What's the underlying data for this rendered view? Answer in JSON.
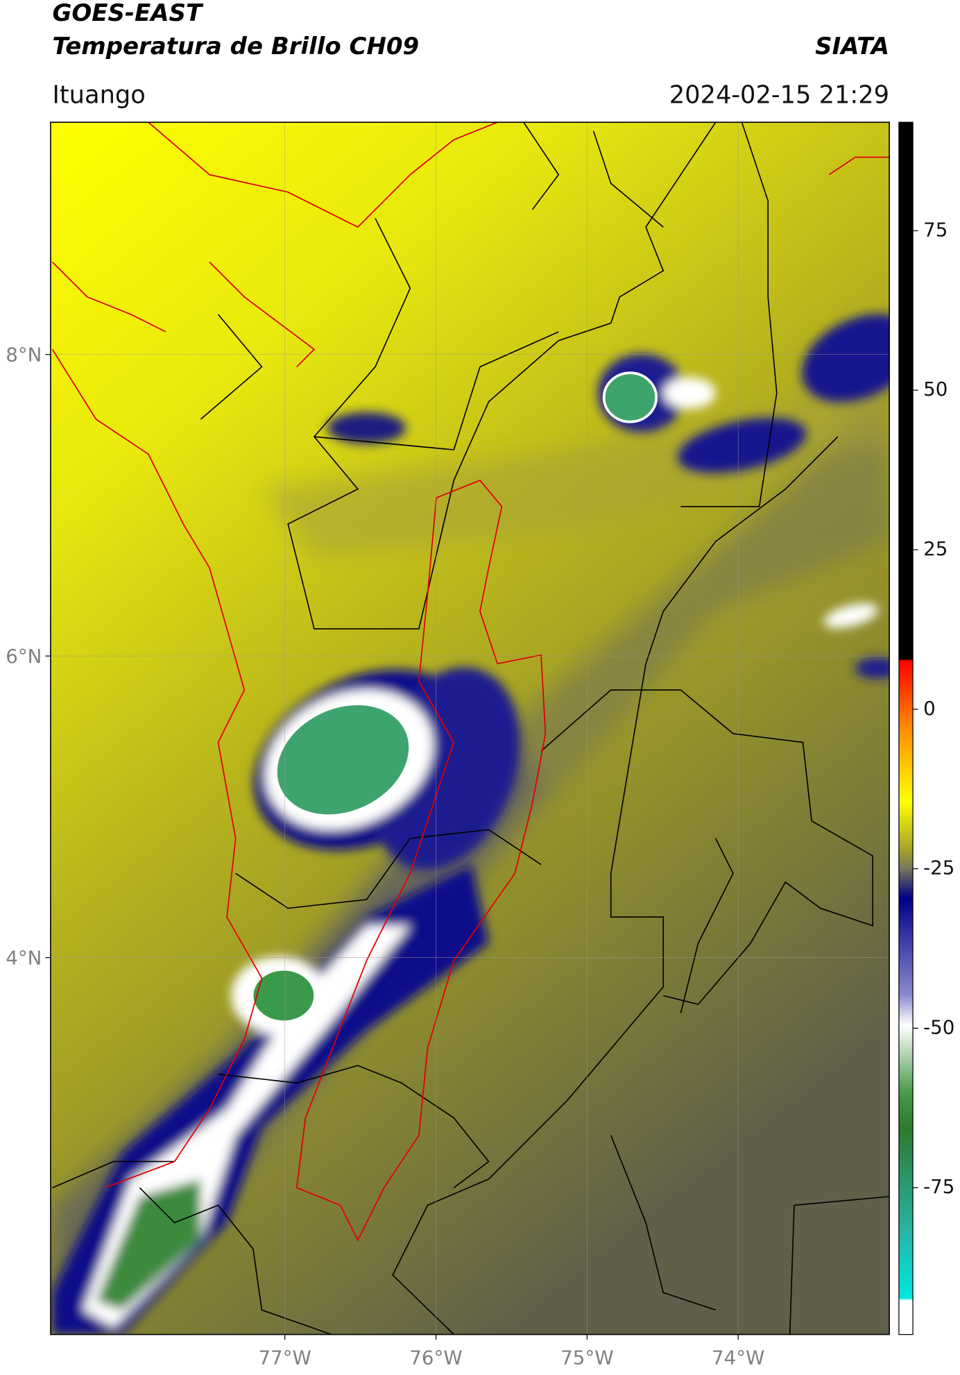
{
  "header": {
    "title": "GOES-EAST",
    "subtitle": "Temperatura de Brillo CH09",
    "source": "SIATA",
    "location": "Ituango",
    "datetime": "2024-02-15 21:29"
  },
  "map": {
    "lon_lim": [
      -78.55,
      -73.0
    ],
    "lat_lim": [
      1.5,
      9.54
    ],
    "lat_ticks": [
      {
        "value": 8,
        "label": "8°N"
      },
      {
        "value": 6,
        "label": "6°N"
      },
      {
        "value": 4,
        "label": "4°N"
      }
    ],
    "lon_ticks": [
      {
        "value": -77,
        "label": "77°W"
      },
      {
        "value": -76,
        "label": "76°W"
      },
      {
        "value": -75,
        "label": "75°W"
      },
      {
        "value": -74,
        "label": "74°W"
      }
    ]
  },
  "colorbar": {
    "lim": [
      -98,
      92
    ],
    "ticks": [
      75,
      50,
      25,
      0,
      -25,
      -50,
      -75
    ]
  }
}
